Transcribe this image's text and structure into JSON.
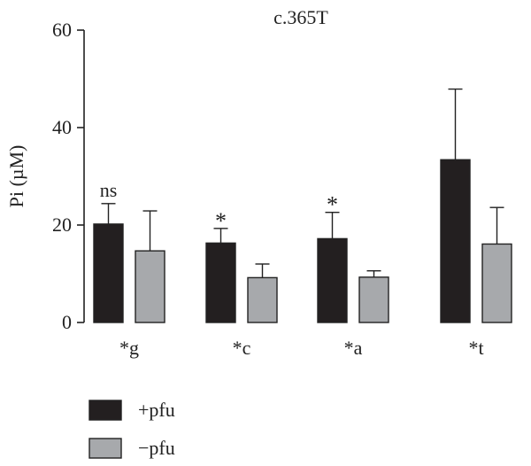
{
  "chart_data": {
    "type": "bar",
    "title": "c.365T",
    "ylabel": "Pi (µM)",
    "xlabel": "",
    "ylim": [
      0,
      60
    ],
    "yticks": [
      0,
      20,
      40,
      60
    ],
    "grid": false,
    "legend_position": "bottom-left",
    "categories": [
      "*g",
      "*c",
      "*a",
      "*t"
    ],
    "series": [
      {
        "name": "+pfu",
        "color": "#231f20",
        "values": [
          20.2,
          16.3,
          17.2,
          33.4
        ],
        "errors": [
          4.2,
          3.0,
          5.4,
          14.5
        ]
      },
      {
        "name": "−pfu",
        "color": "#a7a9ac",
        "values": [
          14.7,
          9.2,
          9.3,
          16.1
        ],
        "errors": [
          8.2,
          2.8,
          1.3,
          7.5
        ]
      }
    ],
    "annotations": [
      "ns",
      "*",
      "*",
      ""
    ]
  }
}
